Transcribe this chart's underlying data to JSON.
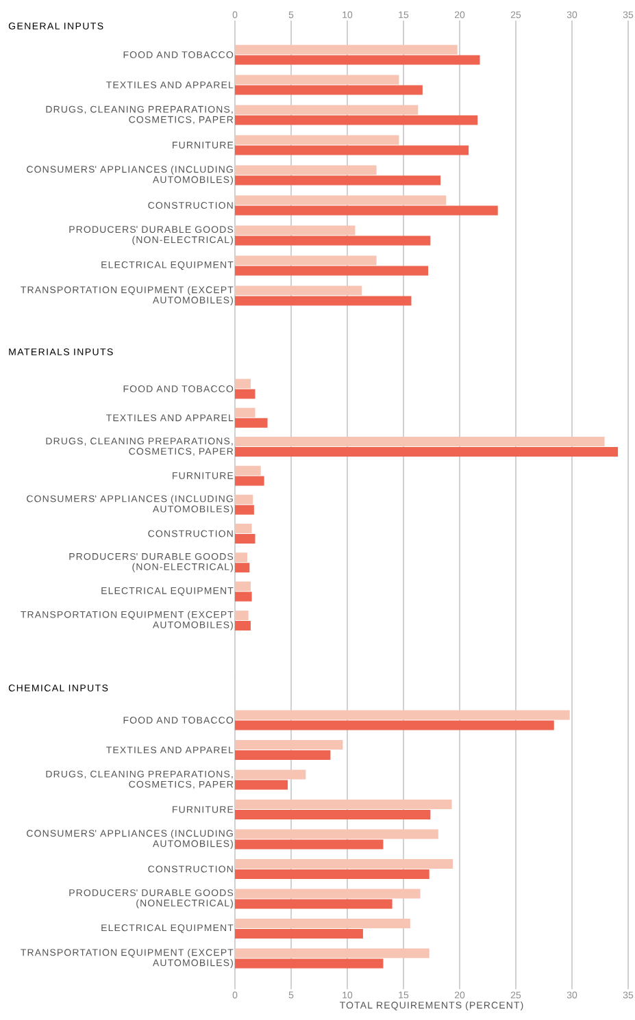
{
  "chart_data": [
    {
      "type": "bar",
      "orientation": "horizontal",
      "title": "GENERAL INPUTS",
      "categories": [
        "FOOD AND TOBACCO",
        "TEXTILES AND APPAREL",
        "DRUGS, CLEANING PREPARATIONS, COSMETICS, PAPER",
        "FURNITURE",
        "CONSUMERS' APPLIANCES (INCLUDING AUTOMOBILES)",
        "CONSTRUCTION",
        "PRODUCERS' DURABLE GOODS (NON-ELECTRICAL)",
        "ELECTRICAL EQUIPMENT",
        "TRANSPORTATION EQUIPMENT (EXCEPT AUTOMOBILES)"
      ],
      "series": [
        {
          "color": "#f7c4b4",
          "values": [
            19.8,
            14.6,
            16.3,
            14.6,
            12.6,
            18.8,
            10.7,
            12.6,
            11.3
          ]
        },
        {
          "color": "#ee6450",
          "values": [
            21.8,
            16.7,
            21.6,
            20.8,
            18.3,
            23.4,
            17.4,
            17.2,
            15.7
          ]
        }
      ],
      "xlim": [
        0,
        35
      ],
      "xticks": [
        0,
        5,
        10,
        15,
        20,
        25,
        30,
        35
      ],
      "grid": "x"
    },
    {
      "type": "bar",
      "orientation": "horizontal",
      "title": "MATERIALS INPUTS",
      "categories": [
        "FOOD AND TOBACCO",
        "TEXTILES AND APPAREL",
        "DRUGS, CLEANING PREPARATIONS, COSMETICS, PAPER",
        "FURNITURE",
        "CONSUMERS' APPLIANCES (INCLUDING AUTOMOBILES)",
        "CONSTRUCTION",
        "PRODUCERS' DURABLE GOODS (NON-ELECTRICAL)",
        "ELECTRICAL EQUIPMENT",
        "TRANSPORTATION EQUIPMENT (EXCEPT AUTOMOBILES)"
      ],
      "series": [
        {
          "color": "#f7c4b4",
          "values": [
            1.4,
            1.8,
            32.9,
            2.3,
            1.6,
            1.5,
            1.1,
            1.4,
            1.2
          ]
        },
        {
          "color": "#ee6450",
          "values": [
            1.8,
            2.9,
            34.1,
            2.6,
            1.7,
            1.8,
            1.3,
            1.5,
            1.4
          ]
        }
      ],
      "xlim": [
        0,
        35
      ],
      "xticks": [
        0,
        5,
        10,
        15,
        20,
        25,
        30,
        35
      ],
      "grid": "x",
      "tick_labels": "y"
    },
    {
      "type": "bar",
      "orientation": "horizontal",
      "title": "CHEMICAL INPUTS",
      "xlabel": "TOTAL REQUIREMENTS (PERCENT)",
      "categories": [
        "FOOD AND TOBACCO",
        "TEXTILES AND APPAREL",
        "DRUGS, CLEANING PREPARATIONS, COSMETICS, PAPER",
        "FURNITURE",
        "CONSUMERS' APPLIANCES (INCLUDING AUTOMOBILES)",
        "CONSTRUCTION",
        "PRODUCERS' DURABLE GOODS (NONELECTRICAL)",
        "ELECTRICAL EQUIPMENT",
        "TRANSPORTATION EQUIPMENT (EXCEPT AUTOMOBILES)"
      ],
      "series": [
        {
          "color": "#f7c4b4",
          "values": [
            29.8,
            9.6,
            6.3,
            19.3,
            18.1,
            19.4,
            16.5,
            15.6,
            17.3
          ]
        },
        {
          "color": "#ee6450",
          "values": [
            28.4,
            8.5,
            4.7,
            17.4,
            13.2,
            17.3,
            14.0,
            11.4,
            13.2
          ]
        }
      ],
      "xlim": [
        0,
        35
      ],
      "xticks": [
        0,
        5,
        10,
        15,
        20,
        25,
        30,
        35
      ],
      "grid": "x"
    }
  ]
}
